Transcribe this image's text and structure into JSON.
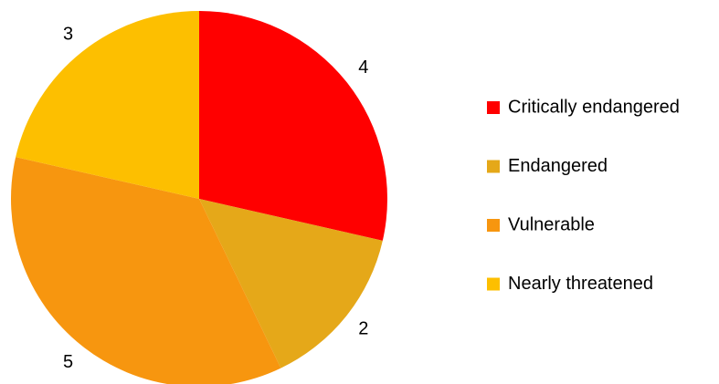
{
  "chart_data": {
    "type": "pie",
    "categories": [
      "Critically endangered",
      "Endangered",
      "Vulnerable",
      "Nearly threatened"
    ],
    "values": [
      4,
      2,
      5,
      3
    ],
    "colors": [
      "#ff0000",
      "#e5a819",
      "#f7960f",
      "#fdbf00"
    ],
    "legend": "right"
  }
}
